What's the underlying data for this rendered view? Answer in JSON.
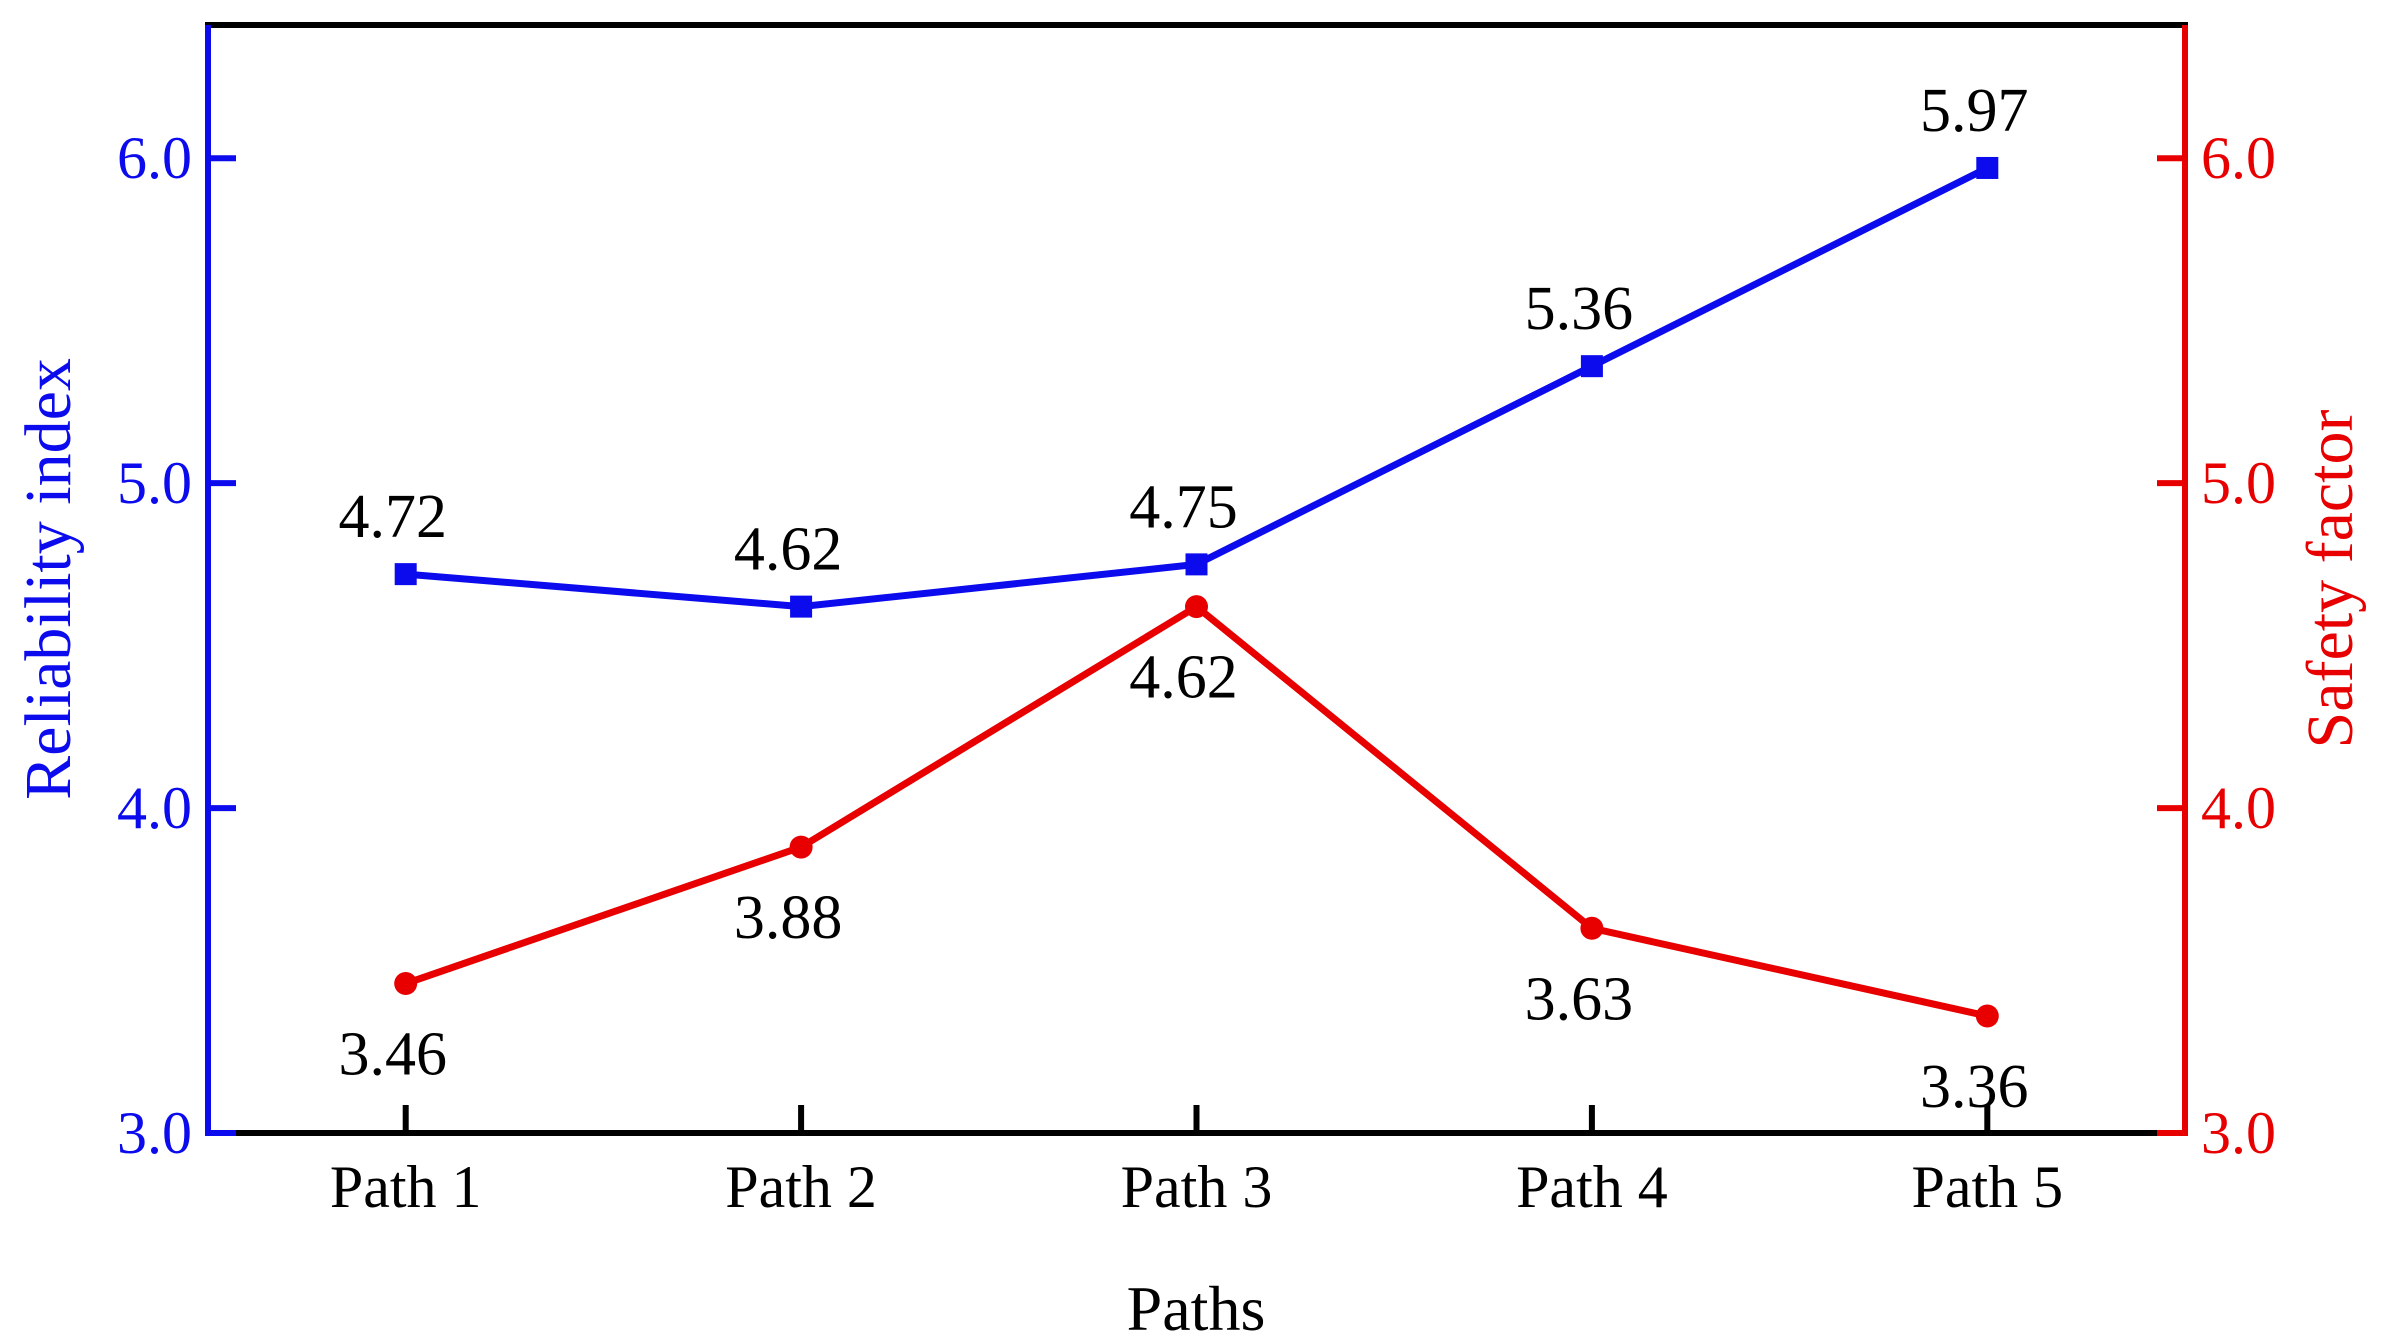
{
  "chart_data": {
    "type": "line",
    "categories": [
      "Path 1",
      "Path 2",
      "Path 3",
      "Path 4",
      "Path 5"
    ],
    "xlabel": "Paths",
    "grid": false,
    "legend": "none",
    "background": "#ffffff",
    "frame_color": "#000000",
    "left_axis": {
      "title": "Reliability index",
      "color": "#0b0bee",
      "tick_values": [
        3.0,
        4.0,
        5.0,
        6.0
      ],
      "tick_labels": [
        "3.0",
        "4.0",
        "5.0",
        "6.0"
      ],
      "range": [
        3.0,
        6.41
      ]
    },
    "right_axis": {
      "title": "Safety factor",
      "color": "#e80000",
      "tick_values": [
        3.0,
        4.0,
        5.0,
        6.0
      ],
      "tick_labels": [
        "3.0",
        "4.0",
        "5.0",
        "6.0"
      ],
      "range": [
        3.0,
        6.41
      ]
    },
    "series": [
      {
        "name": "Reliability index",
        "axis": "left",
        "color": "#0b0bee",
        "marker": "square",
        "values": [
          4.72,
          4.62,
          4.75,
          5.36,
          5.97
        ],
        "point_labels": [
          "4.72",
          "4.62",
          "4.75",
          "5.36",
          "5.97"
        ],
        "label_side": "above",
        "label_color": "#000000"
      },
      {
        "name": "Safety factor",
        "axis": "right",
        "color": "#e80000",
        "marker": "circle",
        "values": [
          3.46,
          3.88,
          4.62,
          3.63,
          3.36
        ],
        "point_labels": [
          "3.46",
          "3.88",
          "4.62",
          "3.63",
          "3.36"
        ],
        "label_side": "below",
        "label_color": "#000000"
      }
    ]
  }
}
